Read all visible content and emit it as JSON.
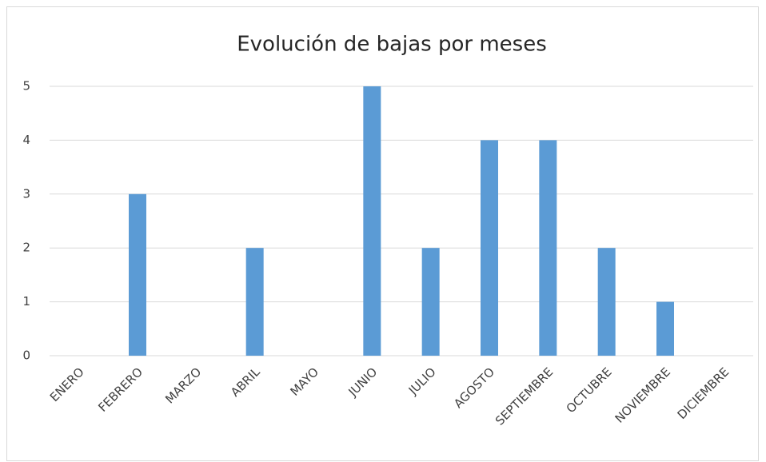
{
  "chart_data": {
    "type": "bar",
    "title": "Evolución de bajas por meses",
    "categories": [
      "ENERO",
      "FEBRERO",
      "MARZO",
      "ABRIL",
      "MAYO",
      "JUNIO",
      "JULIO",
      "AGOSTO",
      "SEPTIEMBRE",
      "OCTUBRE",
      "NOVIEMBRE",
      "DICIEMBRE"
    ],
    "values": [
      0,
      3,
      0,
      2,
      0,
      5,
      2,
      4,
      4,
      2,
      1,
      0
    ],
    "color": "#5b9bd5",
    "ylim": [
      0,
      5
    ],
    "yticks": [
      0,
      1,
      2,
      3,
      4,
      5
    ],
    "grid": true
  }
}
